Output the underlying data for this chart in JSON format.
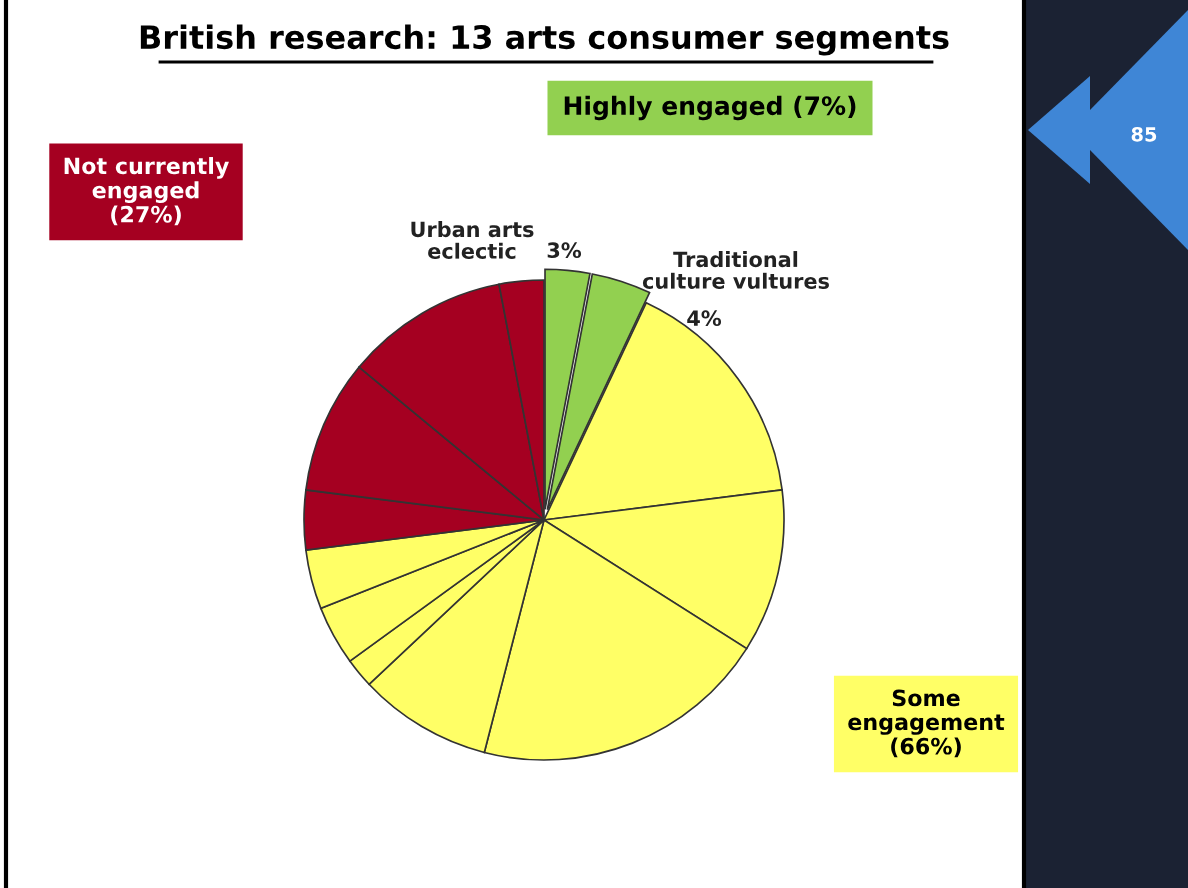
{
  "chart_data": {
    "type": "pie",
    "title": "British research: 13 arts consumer segments",
    "categories": [
      "Urban arts\neclectic",
      "Traditional\nculture vultures",
      null,
      null,
      null,
      null,
      null,
      null,
      null,
      null,
      null,
      null,
      null
    ],
    "values": [
      3,
      4,
      16,
      11,
      20,
      9,
      2,
      4,
      4,
      4,
      9,
      11,
      3
    ],
    "colors": [
      "#92d050",
      "#92d050",
      "#ffff66",
      "#ffff66",
      "#ffff66",
      "#ffff66",
      "#ffff66",
      "#ffff66",
      "#ffff66",
      "#a50021",
      "#a50021",
      "#a50021",
      "#a50021"
    ],
    "value_labels": [
      "3%",
      "4%",
      null,
      null,
      null,
      null,
      null,
      null,
      null,
      null,
      null,
      null,
      null
    ],
    "annotations": [
      "Highly engaged (7%)",
      "Not currently\nengaged\n(27%)",
      "Some\nengagement\n(66%)",
      "85"
    ]
  }
}
